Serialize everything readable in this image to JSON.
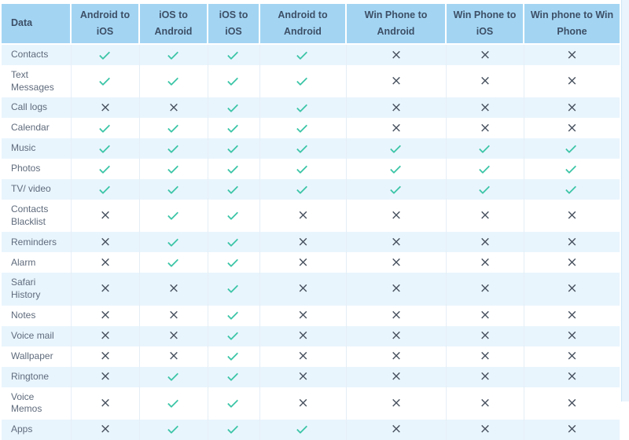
{
  "table": {
    "header": [
      "Data",
      "Android to iOS",
      "iOS to Android",
      "iOS to iOS",
      "Android to Android",
      "Win Phone to Android",
      "Win Phone to iOS",
      "Win phone to Win Phone"
    ],
    "rows": [
      {
        "label": "Contacts",
        "values": [
          "check",
          "check",
          "check",
          "check",
          "cross",
          "cross",
          "cross"
        ]
      },
      {
        "label": "Text Messages",
        "values": [
          "check",
          "check",
          "check",
          "check",
          "cross",
          "cross",
          "cross"
        ]
      },
      {
        "label": "Call logs",
        "values": [
          "cross",
          "cross",
          "check",
          "check",
          "cross",
          "cross",
          "cross"
        ]
      },
      {
        "label": "Calendar",
        "values": [
          "check",
          "check",
          "check",
          "check",
          "cross",
          "cross",
          "cross"
        ]
      },
      {
        "label": "Music",
        "values": [
          "check",
          "check",
          "check",
          "check",
          "check",
          "check",
          "check"
        ]
      },
      {
        "label": "Photos",
        "values": [
          "check",
          "check",
          "check",
          "check",
          "check",
          "check",
          "check"
        ]
      },
      {
        "label": "TV/ video",
        "values": [
          "check",
          "check",
          "check",
          "check",
          "check",
          "check",
          "check"
        ]
      },
      {
        "label": "Contacts Blacklist",
        "values": [
          "cross",
          "check",
          "check",
          "cross",
          "cross",
          "cross",
          "cross"
        ]
      },
      {
        "label": "Reminders",
        "values": [
          "cross",
          "check",
          "check",
          "cross",
          "cross",
          "cross",
          "cross"
        ]
      },
      {
        "label": "Alarm",
        "values": [
          "cross",
          "check",
          "check",
          "cross",
          "cross",
          "cross",
          "cross"
        ]
      },
      {
        "label": "Safari History",
        "values": [
          "cross",
          "cross",
          "check",
          "cross",
          "cross",
          "cross",
          "cross"
        ]
      },
      {
        "label": "Notes",
        "values": [
          "cross",
          "cross",
          "check",
          "cross",
          "cross",
          "cross",
          "cross"
        ]
      },
      {
        "label": "Voice mail",
        "values": [
          "cross",
          "cross",
          "check",
          "cross",
          "cross",
          "cross",
          "cross"
        ]
      },
      {
        "label": "Wallpaper",
        "values": [
          "cross",
          "cross",
          "check",
          "cross",
          "cross",
          "cross",
          "cross"
        ]
      },
      {
        "label": "Ringtone",
        "values": [
          "cross",
          "check",
          "check",
          "cross",
          "cross",
          "cross",
          "cross"
        ]
      },
      {
        "label": "Voice Memos",
        "values": [
          "cross",
          "check",
          "check",
          "cross",
          "cross",
          "cross",
          "cross"
        ]
      },
      {
        "label": "Apps",
        "values": [
          "cross",
          "check",
          "check",
          "check",
          "cross",
          "cross",
          "cross"
        ]
      }
    ]
  },
  "glyphs": {
    "check": "✓",
    "cross": "×"
  },
  "colors": {
    "header_bg": "#a3d5f3",
    "header_text": "#3d4f66",
    "row_alt_bg": "#e9f5fd",
    "row_bg": "#ffffff",
    "label_text": "#5f6b7c",
    "check": "#3cc5a7",
    "cross": "#454f5d"
  }
}
